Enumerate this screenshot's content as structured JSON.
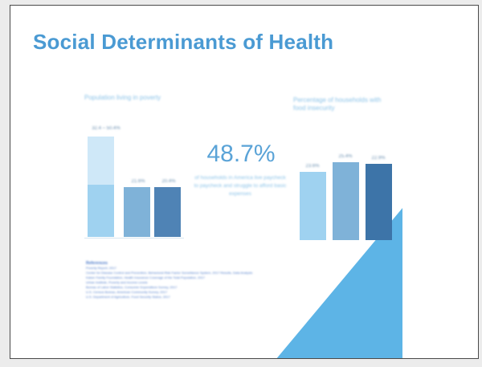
{
  "slide": {
    "title": "Social Determinants of Health"
  },
  "colors": {
    "title": "#4a9ad3",
    "bar_light": "#9fd2f0",
    "bar_lighter": "#cfe8f8",
    "bar_mid": "#7fb2d8",
    "bar_dark": "#4f83b5",
    "bar_darker": "#3d74a8",
    "accent_triangle": "#5db4e6"
  },
  "left_chart": {
    "title": "Population living in poverty",
    "stack_label": "32.4 – 50.4%",
    "bars": [
      {
        "label": "",
        "category": ""
      },
      {
        "label": "21.6%",
        "category": ""
      },
      {
        "label": "20.4%",
        "category": ""
      }
    ]
  },
  "stat": {
    "value": "48.7%",
    "text": "of households in America live paycheck to paycheck and struggle to afford basic expenses"
  },
  "right_chart": {
    "title": "Percentage of households with food insecurity",
    "bars": [
      {
        "label": "23.6%",
        "category": ""
      },
      {
        "label": "25.4%",
        "category": ""
      },
      {
        "label": "22.9%",
        "category": ""
      }
    ]
  },
  "sources": {
    "heading": "References",
    "lines": [
      "Poverty Report, 2017",
      "Center for Disease Control and Prevention, Behavioral Risk Factor Surveillance System, 2017 Results, Data Analysis",
      "Kaiser Family Foundation, Health Insurance Coverage of the Total Population, 2017",
      "Urban Institute, Poverty and Income Levels",
      "Bureau of Labor Statistics, Consumer Expenditure Survey, 2017",
      "U.S. Census Bureau, American Community Survey, 2017",
      "U.S. Department of Agriculture, Food Security Status, 2017"
    ]
  }
}
